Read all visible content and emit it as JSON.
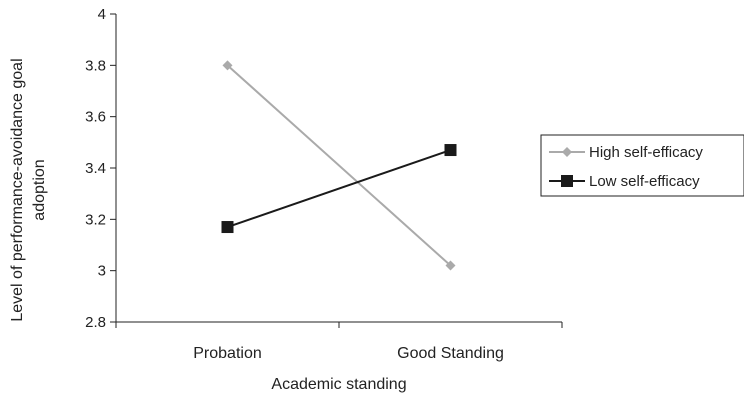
{
  "chart_data": {
    "type": "line",
    "title": "",
    "xlabel": "Academic standing",
    "ylabel_lines": [
      "Level of performance-avoidance goal",
      "adoption"
    ],
    "categories": [
      "Probation",
      "Good Standing"
    ],
    "ylim": [
      2.8,
      4
    ],
    "yticks": [
      "2.8",
      "3",
      "3.2",
      "3.4",
      "3.6",
      "3.8",
      "4"
    ],
    "grid": false,
    "legend_position": "right",
    "series": [
      {
        "name": "High self-efficacy",
        "values": [
          3.8,
          3.02
        ],
        "color": "#aaaaaa",
        "marker": "diamond"
      },
      {
        "name": "Low self-efficacy",
        "values": [
          3.17,
          3.47
        ],
        "color": "#1a1a1a",
        "marker": "square"
      }
    ]
  }
}
